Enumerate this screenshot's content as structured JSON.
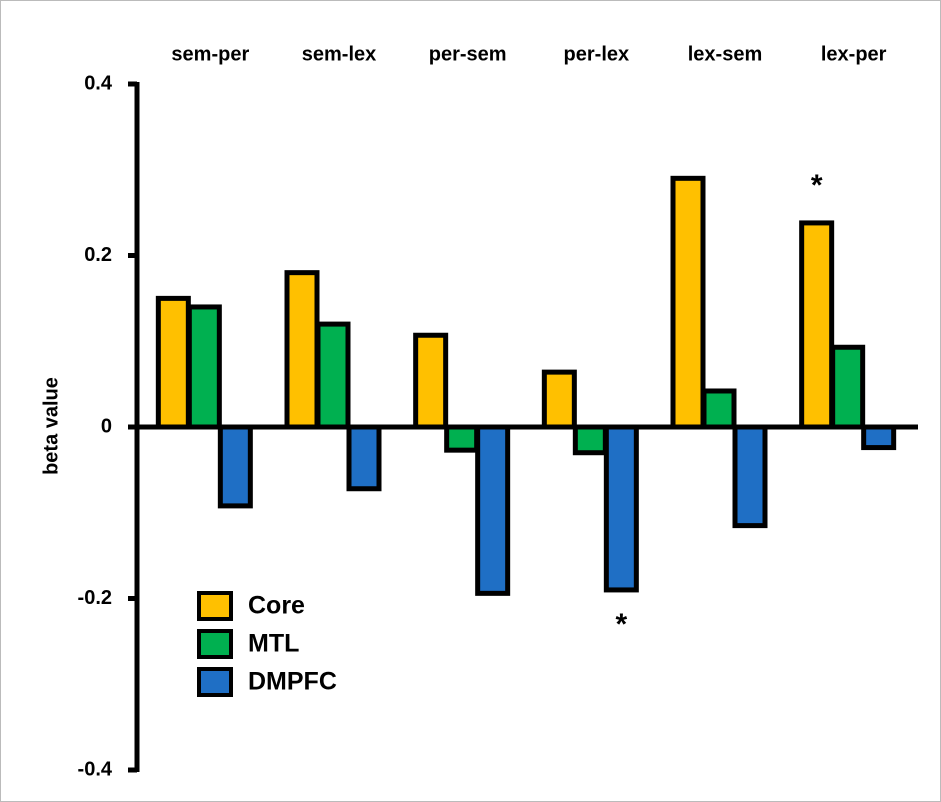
{
  "chart_data": {
    "type": "bar",
    "categories": [
      "sem-per",
      "sem-lex",
      "per-sem",
      "per-lex",
      "lex-sem",
      "lex-per"
    ],
    "y_label": "beta value",
    "ylim": [
      -0.4,
      0.4
    ],
    "yticks": [
      0.4,
      0.2,
      0,
      -0.2,
      -0.4
    ],
    "series": [
      {
        "name": "Core",
        "color": "#ffc000",
        "values": [
          0.15,
          0.18,
          0.107,
          0.064,
          0.29,
          0.238
        ],
        "significance": [
          null,
          null,
          null,
          null,
          null,
          "*"
        ]
      },
      {
        "name": "MTL",
        "color": "#00b050",
        "values": [
          0.14,
          0.12,
          -0.027,
          -0.03,
          0.042,
          0.093
        ],
        "significance": [
          null,
          null,
          null,
          null,
          null,
          null
        ]
      },
      {
        "name": "DMPFC",
        "color": "#1f6fc5",
        "values": [
          -0.092,
          -0.072,
          -0.194,
          -0.19,
          -0.115,
          -0.024
        ],
        "significance": [
          null,
          null,
          null,
          "*",
          null,
          null
        ]
      }
    ]
  }
}
